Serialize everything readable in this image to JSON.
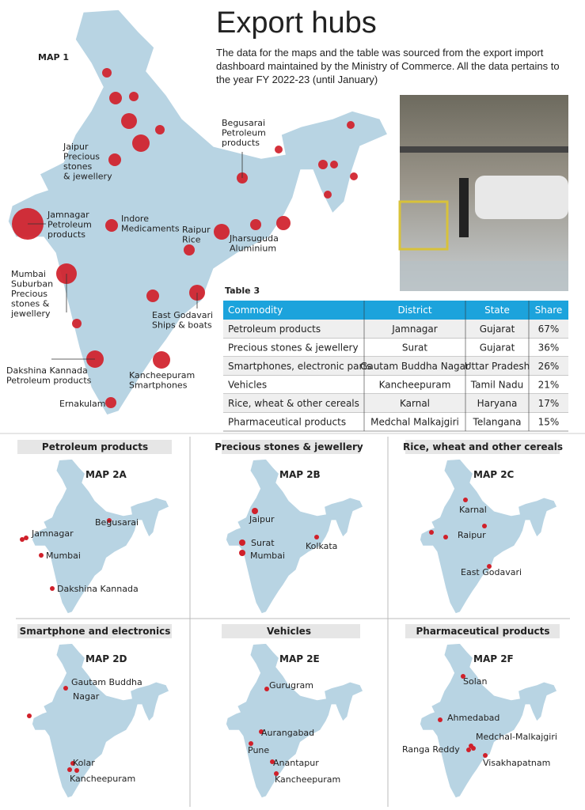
{
  "header": {
    "title": "Export hubs",
    "description": "The data for the maps and the table was sourced from the export import dashboard maintained by the Ministry of Commerce. All the data pertains to the year FY 2022-23 (until January)"
  },
  "map1": {
    "label": "MAP 1",
    "annotations": [
      [
        "Begusarai",
        "Petroleum",
        "products"
      ],
      [
        "Jaipur",
        "Precious",
        "stones",
        "& jewellery"
      ],
      [
        "Jamnagar",
        "Petroleum",
        "products"
      ],
      [
        "Indore",
        "Medicaments"
      ],
      [
        "Raipur",
        "Rice"
      ],
      [
        "Jharsuguda",
        "Aluminium"
      ],
      [
        "Mumbai",
        "Suburban",
        "Precious",
        "stones &",
        "jewellery"
      ],
      [
        "East Godavari",
        "Ships & boats"
      ],
      [
        "Dakshina Kannada",
        "Petroleum products"
      ],
      [
        "Kancheepuram",
        "Smartphones"
      ],
      [
        "Ernakulam"
      ]
    ]
  },
  "table": {
    "label": "Table 3",
    "columns": [
      "Commodity",
      "District",
      "State",
      "Share"
    ],
    "rows": [
      [
        "Petroleum products",
        "Jamnagar",
        "Gujarat",
        "67%"
      ],
      [
        "Precious stones & jewellery",
        "Surat",
        "Gujarat",
        "36%"
      ],
      [
        "Smartphones, electronic parts",
        "Gautam Buddha Nagar",
        "Uttar Pradesh",
        "26%"
      ],
      [
        "Vehicles",
        "Kancheepuram",
        "Tamil Nadu",
        "21%"
      ],
      [
        "Rice, wheat & other cereals",
        "Karnal",
        "Haryana",
        "17%"
      ],
      [
        "Pharmaceutical products",
        "Medchal Malkajgiri",
        "Telangana",
        "15%"
      ]
    ]
  },
  "maps2": [
    {
      "title": "Petroleum products",
      "label": "MAP 2A",
      "places": [
        [
          "Jamnagar"
        ],
        [
          "Begusarai"
        ],
        [
          "Mumbai"
        ],
        [
          "Dakshina Kannada"
        ]
      ]
    },
    {
      "title": "Precious stones & jewellery",
      "label": "MAP 2B",
      "places": [
        [
          "Jaipur"
        ],
        [
          "Surat"
        ],
        [
          "Mumbai"
        ],
        [
          "Kolkata"
        ]
      ]
    },
    {
      "title": "Rice, wheat and other cereals",
      "label": "MAP 2C",
      "places": [
        [
          "Karnal"
        ],
        [
          "Raipur"
        ],
        [
          "East Godavari"
        ]
      ]
    },
    {
      "title": "Smartphone and electronics",
      "label": "MAP 2D",
      "places": [
        [
          "Gautam Buddha",
          "Nagar"
        ],
        [
          "Kolar"
        ],
        [
          "Kancheepuram"
        ]
      ]
    },
    {
      "title": "Vehicles",
      "label": "MAP 2E",
      "places": [
        [
          "Gurugram"
        ],
        [
          "Aurangabad"
        ],
        [
          "Pune"
        ],
        [
          "Anantapur"
        ],
        [
          "Kancheepuram"
        ]
      ]
    },
    {
      "title": "Pharmaceutical products",
      "label": "MAP 2F",
      "places": [
        [
          "Solan"
        ],
        [
          "Ahmedabad"
        ],
        [
          "Medchal-Malkajgiri"
        ],
        [
          "Ranga Reddy"
        ],
        [
          "Visakhapatnam"
        ]
      ]
    }
  ]
}
